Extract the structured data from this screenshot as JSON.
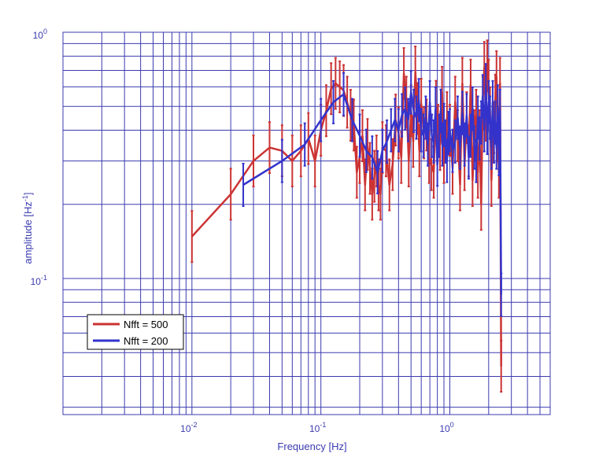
{
  "chart_data": {
    "type": "line",
    "title": "",
    "xlabel": "Frequency  [Hz]",
    "ylabel_main": "amplitude  [Hz",
    "ylabel_sup": "-1",
    "ylabel_end": "]",
    "xscale": "log",
    "yscale": "log",
    "xlim": [
      0.001,
      6
    ],
    "ylim": [
      0.028,
      1
    ],
    "x_ticks": [
      {
        "base": "10",
        "exp": "-2",
        "value": 0.01
      },
      {
        "base": "10",
        "exp": "-1",
        "value": 0.1
      },
      {
        "base": "10",
        "exp": "0",
        "value": 1
      }
    ],
    "y_ticks": [
      {
        "base": "10",
        "exp": "-1",
        "value": 0.1
      },
      {
        "base": "10",
        "exp": "0",
        "value": 1
      }
    ],
    "grid": true,
    "legend_position": "bottom-left",
    "colors": {
      "series_500": "#cc3333",
      "series_200": "#3333cc",
      "grid": "#3b3bb0"
    },
    "legend": [
      {
        "label": "Nfft = 500",
        "color": "#cc3333"
      },
      {
        "label": "Nfft = 200",
        "color": "#3333cc"
      }
    ],
    "series": [
      {
        "name": "Nfft = 500",
        "color": "#cc3333",
        "err_rel": 0.27,
        "x": [
          0.01,
          0.02,
          0.03,
          0.04,
          0.05,
          0.06,
          0.07,
          0.08,
          0.09,
          0.1,
          0.11,
          0.12,
          0.13,
          0.14,
          0.15,
          0.16,
          0.17,
          0.18,
          0.19,
          0.2,
          0.21,
          0.22,
          0.23,
          0.24,
          0.25,
          0.26,
          0.27,
          0.28,
          0.29,
          0.3,
          0.32,
          0.34,
          0.36,
          0.38,
          0.4,
          0.42,
          0.44,
          0.46,
          0.48,
          0.5,
          0.52,
          0.54,
          0.56,
          0.58,
          0.6,
          0.63,
          0.66,
          0.69,
          0.72,
          0.75,
          0.78,
          0.81,
          0.84,
          0.87,
          0.9,
          0.95,
          1.0,
          1.05,
          1.1,
          1.15,
          1.2,
          1.25,
          1.3,
          1.35,
          1.4,
          1.45,
          1.5,
          1.55,
          1.6,
          1.65,
          1.7,
          1.75,
          1.8,
          1.85,
          1.9,
          1.95,
          2.0,
          2.05,
          2.1,
          2.15,
          2.2,
          2.25,
          2.3,
          2.35,
          2.4,
          2.45,
          2.5
        ],
        "y": [
          0.148,
          0.22,
          0.3,
          0.34,
          0.33,
          0.3,
          0.33,
          0.37,
          0.3,
          0.4,
          0.48,
          0.59,
          0.62,
          0.6,
          0.58,
          0.52,
          0.46,
          0.42,
          0.27,
          0.31,
          0.38,
          0.24,
          0.35,
          0.28,
          0.22,
          0.26,
          0.3,
          0.24,
          0.22,
          0.34,
          0.33,
          0.24,
          0.29,
          0.44,
          0.39,
          0.31,
          0.68,
          0.52,
          0.3,
          0.48,
          0.36,
          0.69,
          0.49,
          0.33,
          0.51,
          0.39,
          0.42,
          0.31,
          0.29,
          0.27,
          0.5,
          0.4,
          0.35,
          0.57,
          0.31,
          0.45,
          0.4,
          0.28,
          0.52,
          0.38,
          0.24,
          0.62,
          0.29,
          0.45,
          0.33,
          0.61,
          0.25,
          0.38,
          0.46,
          0.27,
          0.38,
          0.2,
          0.52,
          0.72,
          0.46,
          0.73,
          0.61,
          0.47,
          0.25,
          0.38,
          0.41,
          0.53,
          0.66,
          0.38,
          0.27,
          0.62,
          0.044
        ]
      },
      {
        "name": "Nfft = 200",
        "color": "#3333cc",
        "err_rel": 0.22,
        "x": [
          0.025,
          0.05,
          0.075,
          0.1,
          0.125,
          0.15,
          0.175,
          0.2,
          0.225,
          0.25,
          0.275,
          0.3,
          0.325,
          0.35,
          0.375,
          0.4,
          0.425,
          0.45,
          0.475,
          0.5,
          0.525,
          0.55,
          0.575,
          0.6,
          0.625,
          0.65,
          0.675,
          0.7,
          0.725,
          0.75,
          0.775,
          0.8,
          0.825,
          0.85,
          0.875,
          0.9,
          0.925,
          0.95,
          0.975,
          1.0,
          1.05,
          1.1,
          1.15,
          1.2,
          1.25,
          1.3,
          1.35,
          1.4,
          1.45,
          1.5,
          1.55,
          1.6,
          1.65,
          1.7,
          1.75,
          1.8,
          1.85,
          1.9,
          1.95,
          2.0,
          2.05,
          2.1,
          2.15,
          2.2,
          2.25,
          2.3,
          2.35,
          2.4,
          2.45,
          2.5
        ],
        "y": [
          0.24,
          0.3,
          0.35,
          0.44,
          0.52,
          0.56,
          0.44,
          0.38,
          0.33,
          0.31,
          0.27,
          0.33,
          0.36,
          0.4,
          0.44,
          0.4,
          0.46,
          0.49,
          0.44,
          0.57,
          0.48,
          0.45,
          0.53,
          0.4,
          0.38,
          0.45,
          0.35,
          0.52,
          0.38,
          0.36,
          0.49,
          0.29,
          0.38,
          0.48,
          0.35,
          0.42,
          0.36,
          0.3,
          0.39,
          0.4,
          0.33,
          0.36,
          0.45,
          0.34,
          0.47,
          0.35,
          0.46,
          0.31,
          0.38,
          0.49,
          0.34,
          0.3,
          0.45,
          0.37,
          0.43,
          0.55,
          0.4,
          0.61,
          0.39,
          0.52,
          0.45,
          0.34,
          0.52,
          0.36,
          0.43,
          0.34,
          0.5,
          0.32,
          0.48,
          0.086
        ]
      }
    ]
  }
}
